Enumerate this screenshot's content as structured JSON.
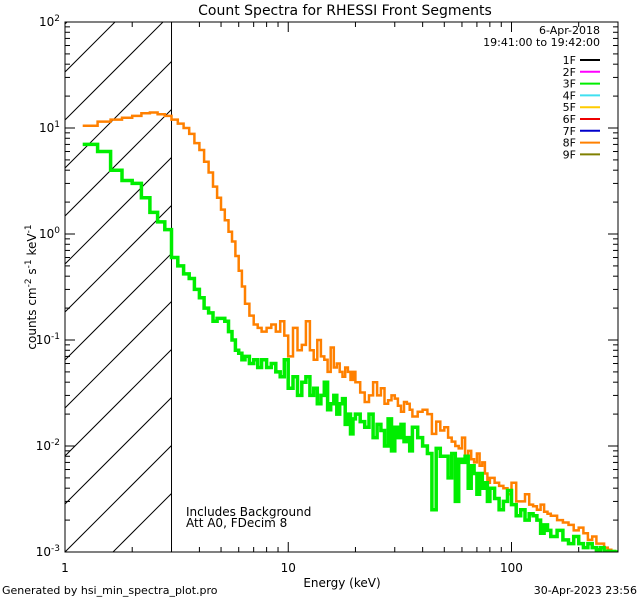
{
  "chart_data": {
    "type": "line",
    "title": "Count Spectra for RHESSI Front Segments",
    "xlabel": "Energy (keV)",
    "ylabel": {
      "base": "counts cm",
      "exp1": "-2",
      "mid1": " s",
      "exp2": "-1",
      "mid2": " keV",
      "exp3": "-1"
    },
    "xscale": "log",
    "yscale": "log",
    "xlim": [
      1,
      300
    ],
    "ylim": [
      0.001,
      100
    ],
    "x_ticks": [
      {
        "value": 1,
        "label": "1"
      },
      {
        "value": 10,
        "label": "10"
      },
      {
        "value": 100,
        "label": "100"
      }
    ],
    "y_ticks": [
      {
        "value": 0.001,
        "base": "10",
        "exp": "-3"
      },
      {
        "value": 0.01,
        "base": "10",
        "exp": "-2"
      },
      {
        "value": 0.1,
        "base": "10",
        "exp": "-1"
      },
      {
        "value": 1,
        "base": "10",
        "exp": "0"
      },
      {
        "value": 10,
        "base": "10",
        "exp": "1"
      },
      {
        "value": 100,
        "base": "10",
        "exp": "2"
      }
    ],
    "shaded_region": {
      "x_from": 1,
      "x_to": 3,
      "pattern": "diagonal-hatch"
    },
    "legend_header": {
      "date": "6-Apr-2018",
      "time_range": "19:41:00 to 19:42:00"
    },
    "legend": [
      {
        "name": "1F",
        "color": "#000000"
      },
      {
        "name": "2F",
        "color": "#ff00ff"
      },
      {
        "name": "3F",
        "color": "#00ee00"
      },
      {
        "name": "4F",
        "color": "#40e0f0"
      },
      {
        "name": "5F",
        "color": "#ffcc00"
      },
      {
        "name": "6F",
        "color": "#ee0000"
      },
      {
        "name": "7F",
        "color": "#0000cc"
      },
      {
        "name": "8F",
        "color": "#ff8000"
      },
      {
        "name": "9F",
        "color": "#808000"
      }
    ],
    "annotations": [
      "Includes Background",
      "Att A0, FDecim 8"
    ],
    "series": [
      {
        "name": "8F",
        "color": "#ff8000",
        "x": [
          1.2,
          1.4,
          1.6,
          1.8,
          2.0,
          2.2,
          2.4,
          2.6,
          2.8,
          3.0,
          3.2,
          3.4,
          3.6,
          3.8,
          4.0,
          4.2,
          4.4,
          4.6,
          4.8,
          5.0,
          5.2,
          5.4,
          5.6,
          5.8,
          6.0,
          6.2,
          6.4,
          6.7,
          7.0,
          7.3,
          7.6,
          8.0,
          8.4,
          8.8,
          9.2,
          9.6,
          10.0,
          10.5,
          11.0,
          11.5,
          12.0,
          12.5,
          13.0,
          13.5,
          14.0,
          14.5,
          15.0,
          15.5,
          16.0,
          16.5,
          17.0,
          17.5,
          18.0,
          18.5,
          19.0,
          19.5,
          20.0,
          21.0,
          22.0,
          23.0,
          24.0,
          25.0,
          26.0,
          27.0,
          28.0,
          29.0,
          30.0,
          31.0,
          32.0,
          33.0,
          34.0,
          35.0,
          36.0,
          38.0,
          40.0,
          42.0,
          44.0,
          46.0,
          48.0,
          50.0,
          52.0,
          54.0,
          56.0,
          58.0,
          60.0,
          62.0,
          64.0,
          66.0,
          68.0,
          70.0,
          72.0,
          74.0,
          76.0,
          78.0,
          80.0,
          84.0,
          88.0,
          92.0,
          96.0,
          100.0,
          105.0,
          110.0,
          115.0,
          120.0,
          125.0,
          130.0,
          135.0,
          140.0,
          145.0,
          150.0,
          160.0,
          170.0,
          180.0,
          190.0,
          200.0,
          210.0,
          220.0,
          230.0,
          240.0,
          250.0,
          260.0,
          270.0,
          280.0,
          290.0
        ],
        "values": [
          10.5,
          11.5,
          12.0,
          12.5,
          13.0,
          13.8,
          14.0,
          13.5,
          13.0,
          12.0,
          11.0,
          10.0,
          8.8,
          7.2,
          6.2,
          4.8,
          3.8,
          2.8,
          2.2,
          1.7,
          1.35,
          1.05,
          0.85,
          0.62,
          0.45,
          0.32,
          0.22,
          0.17,
          0.14,
          0.13,
          0.12,
          0.13,
          0.14,
          0.12,
          0.15,
          0.11,
          0.07,
          0.13,
          0.08,
          0.09,
          0.15,
          0.08,
          0.065,
          0.1,
          0.07,
          0.065,
          0.05,
          0.085,
          0.055,
          0.06,
          0.05,
          0.045,
          0.055,
          0.05,
          0.042,
          0.05,
          0.04,
          0.032,
          0.026,
          0.03,
          0.04,
          0.03,
          0.035,
          0.025,
          0.027,
          0.03,
          0.028,
          0.024,
          0.021,
          0.026,
          0.025,
          0.022,
          0.019,
          0.021,
          0.022,
          0.02,
          0.013,
          0.017,
          0.014,
          0.015,
          0.012,
          0.011,
          0.01,
          0.0095,
          0.012,
          0.008,
          0.009,
          0.0075,
          0.007,
          0.0085,
          0.0065,
          0.007,
          0.0055,
          0.0045,
          0.005,
          0.0045,
          0.0042,
          0.004,
          0.0035,
          0.0045,
          0.003,
          0.003,
          0.0035,
          0.0028,
          0.0027,
          0.0025,
          0.0028,
          0.0024,
          0.0023,
          0.0022,
          0.002,
          0.0019,
          0.0018,
          0.0016,
          0.0017,
          0.0015,
          0.0013,
          0.0014,
          0.0012,
          0.0012,
          0.0011,
          0.00105,
          0.00102,
          0.001
        ]
      },
      {
        "name": "3F",
        "color": "#00ee00",
        "x": [
          1.2,
          1.4,
          1.6,
          1.8,
          2.0,
          2.2,
          2.4,
          2.6,
          2.8,
          3.0,
          3.2,
          3.4,
          3.6,
          3.8,
          4.0,
          4.2,
          4.4,
          4.6,
          4.8,
          5.0,
          5.2,
          5.4,
          5.6,
          5.8,
          6.0,
          6.2,
          6.4,
          6.7,
          7.0,
          7.3,
          7.6,
          8.0,
          8.4,
          8.8,
          9.2,
          9.6,
          10.0,
          10.5,
          11.0,
          11.5,
          12.0,
          12.5,
          13.0,
          13.5,
          14.0,
          14.5,
          15.0,
          15.5,
          16.0,
          16.5,
          17.0,
          17.5,
          18.0,
          18.5,
          19.0,
          19.5,
          20.0,
          21.0,
          22.0,
          23.0,
          24.0,
          25.0,
          26.0,
          27.0,
          28.0,
          29.0,
          30.0,
          31.0,
          32.0,
          33.0,
          34.0,
          35.0,
          36.0,
          38.0,
          40.0,
          42.0,
          44.0,
          46.0,
          48.0,
          50.0,
          52.0,
          54.0,
          56.0,
          58.0,
          60.0,
          62.0,
          64.0,
          66.0,
          68.0,
          70.0,
          72.0,
          74.0,
          76.0,
          78.0,
          80.0,
          84.0,
          88.0,
          92.0,
          96.0,
          100.0,
          105.0,
          110.0,
          115.0,
          120.0,
          125.0,
          130.0,
          135.0,
          140.0,
          145.0,
          150.0,
          160.0,
          170.0,
          180.0,
          190.0,
          200.0,
          210.0,
          220.0,
          230.0,
          240.0,
          250.0,
          260.0,
          270.0,
          280.0,
          290.0
        ],
        "values": [
          7.0,
          6.0,
          4.0,
          3.2,
          3.0,
          2.2,
          1.6,
          1.3,
          1.1,
          0.6,
          0.5,
          0.42,
          0.38,
          0.3,
          0.25,
          0.2,
          0.18,
          0.15,
          0.16,
          0.16,
          0.15,
          0.12,
          0.1,
          0.08,
          0.075,
          0.065,
          0.07,
          0.06,
          0.065,
          0.055,
          0.065,
          0.055,
          0.06,
          0.05,
          0.045,
          0.065,
          0.035,
          0.045,
          0.03,
          0.04,
          0.045,
          0.03,
          0.035,
          0.025,
          0.03,
          0.04,
          0.022,
          0.025,
          0.03,
          0.02,
          0.025,
          0.028,
          0.016,
          0.02,
          0.013,
          0.018,
          0.02,
          0.017,
          0.015,
          0.02,
          0.012,
          0.016,
          0.014,
          0.01,
          0.018,
          0.009,
          0.015,
          0.012,
          0.016,
          0.011,
          0.012,
          0.009,
          0.015,
          0.012,
          0.01,
          0.0085,
          0.0025,
          0.0095,
          0.008,
          0.008,
          0.005,
          0.0085,
          0.003,
          0.0075,
          0.007,
          0.008,
          0.004,
          0.0065,
          0.0055,
          0.0035,
          0.0055,
          0.004,
          0.0045,
          0.003,
          0.004,
          0.0032,
          0.0025,
          0.003,
          0.0038,
          0.0028,
          0.0022,
          0.0025,
          0.002,
          0.0023,
          0.0022,
          0.002,
          0.0015,
          0.0018,
          0.0016,
          0.0014,
          0.0016,
          0.0013,
          0.0012,
          0.0014,
          0.0012,
          0.0011,
          0.0012,
          0.0011,
          0.00105,
          0.0011,
          0.00102,
          0.001,
          0.00101,
          0.001
        ]
      }
    ]
  },
  "footer": {
    "generated_by": "Generated by hsi_min_spectra_plot.pro",
    "timestamp": "30-Apr-2023 23:56"
  }
}
